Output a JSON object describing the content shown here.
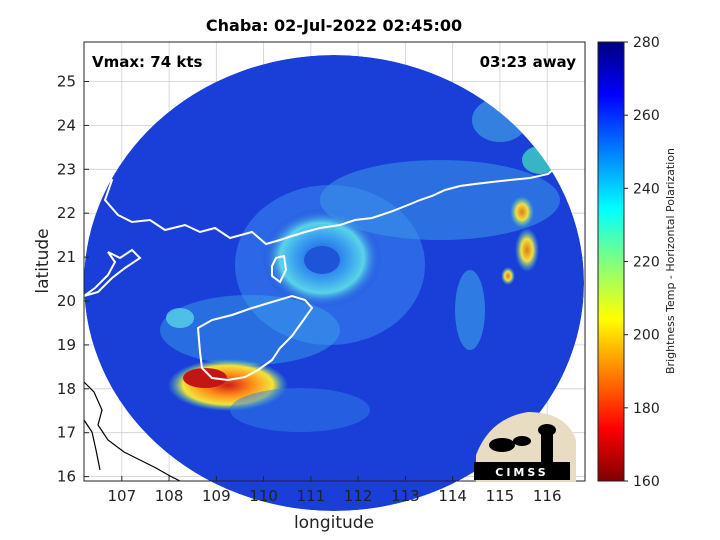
{
  "title": "Chaba: 02-Jul-2022 02:45:00",
  "annotations": {
    "vmax": "Vmax: 74 kts",
    "time_away": "03:23 away"
  },
  "axes": {
    "xlabel": "longitude",
    "ylabel": "latitude",
    "xticks": [
      "107",
      "108",
      "109",
      "110",
      "111",
      "112",
      "113",
      "114",
      "115",
      "116"
    ],
    "yticks": [
      "16",
      "17",
      "18",
      "19",
      "20",
      "21",
      "22",
      "23",
      "24",
      "25"
    ],
    "xlim": [
      106.2,
      116.8
    ],
    "ylim": [
      15.9,
      25.9
    ]
  },
  "colorbar": {
    "label": "Brightness Temp - Horizontal Polarization",
    "ticks": [
      "280",
      "260",
      "240",
      "220",
      "200",
      "180",
      "160"
    ],
    "range": [
      160,
      280
    ],
    "colormap": "jet"
  },
  "logo": {
    "text": "CIMSS"
  },
  "colors": {
    "coast": "#ffffff",
    "coast_outside": "#000000",
    "background_field": "#1a3fd9"
  }
}
